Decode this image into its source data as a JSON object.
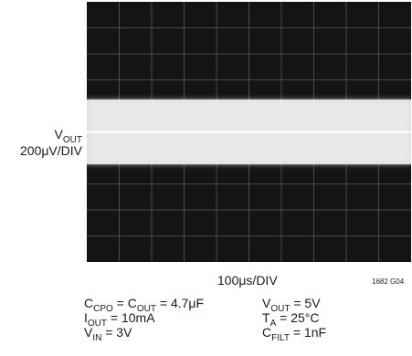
{
  "figure": {
    "ylabel": {
      "signal": "V",
      "signal_sub": "OUT",
      "scale": "200μV/DIV"
    },
    "xlabel": "100μs/DIV",
    "figure_id": "1682 G04",
    "conditions": {
      "c_cpo": {
        "a": "C",
        "a_sub": "CPO",
        "b": " = C",
        "b_sub": "OUT",
        "c": " = 4.7μF"
      },
      "i_out": {
        "a": "I",
        "a_sub": "OUT",
        "b": " = 10mA"
      },
      "v_in": {
        "a": "V",
        "a_sub": "IN",
        "b": " = 3V"
      },
      "v_out": {
        "a": "V",
        "a_sub": "OUT",
        "b": " = 5V"
      },
      "t_a": {
        "a": "T",
        "a_sub": "A",
        "b": " = 25°C"
      },
      "c_filt": {
        "a": "C",
        "a_sub": "FILT",
        "b": " = 1nF"
      }
    }
  },
  "chart_data": {
    "type": "line",
    "title": "",
    "xlabel": "100μs/DIV",
    "ylabel": "VOUT 200μV/DIV",
    "xlim": [
      0,
      1000
    ],
    "ylim": [
      -1000,
      1000
    ],
    "x_unit": "μs",
    "y_unit": "μV",
    "grid": true,
    "grid_divisions": {
      "x": 10,
      "y": 10
    },
    "background": "oscilloscope",
    "series": [
      {
        "x": [
          0,
          100,
          200,
          300,
          400,
          500,
          600,
          700,
          800,
          900,
          1000
        ],
        "center": [
          0,
          0,
          0,
          0,
          0,
          0,
          0,
          0,
          0,
          0,
          0
        ],
        "peak_to_peak": 500
      }
    ],
    "colors": {
      "screen": "#141414",
      "grid": "#5a5a5a",
      "trace": "#f8f8f8"
    }
  }
}
